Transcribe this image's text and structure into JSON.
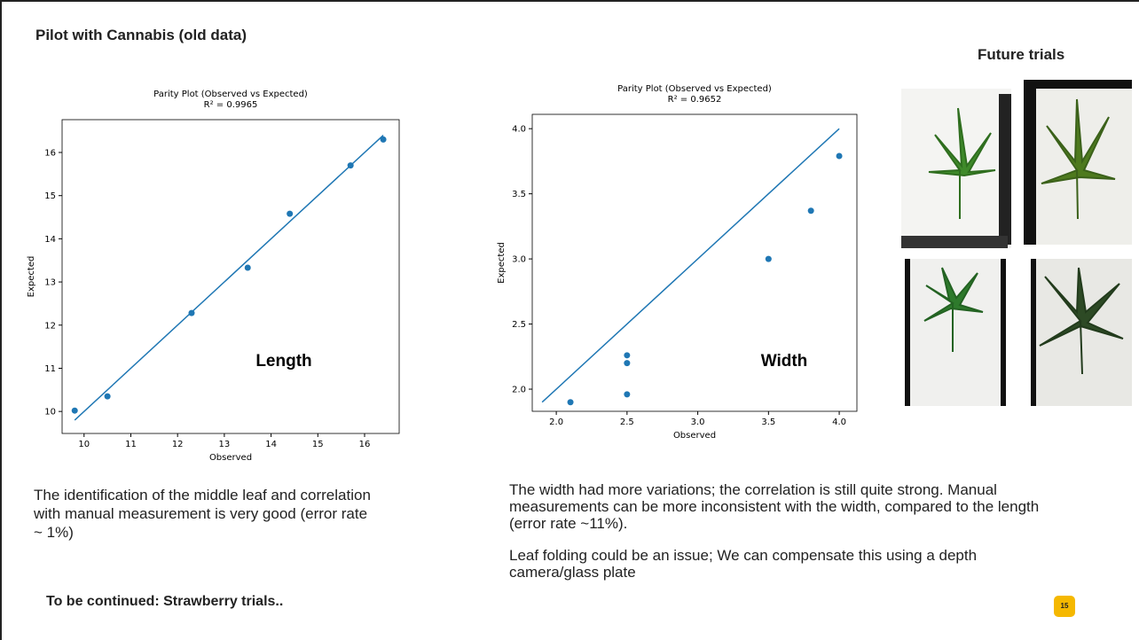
{
  "header": {
    "title": "Pilot with Cannabis (old data)",
    "side_title": "Future trials"
  },
  "chart_data": [
    {
      "type": "scatter",
      "title": "Parity Plot (Observed vs Expected)",
      "subtitle": "R² = 0.9965",
      "x_label": "Observed",
      "y_label": "Expected",
      "annotation": "Length",
      "color": "#1f77b4",
      "x": [
        9.8,
        10.5,
        12.3,
        13.5,
        14.4,
        15.7,
        16.4
      ],
      "values": [
        10.02,
        10.35,
        12.28,
        13.33,
        14.58,
        15.7,
        16.3
      ],
      "fit": {
        "x": [
          9.8,
          16.4
        ],
        "y": [
          9.8,
          16.4
        ]
      },
      "xlim": [
        9.53,
        16.74
      ],
      "ylim": [
        9.49,
        16.76
      ],
      "xticks": [
        10,
        11,
        12,
        13,
        14,
        15,
        16
      ],
      "yticks": [
        10,
        11,
        12,
        13,
        14,
        15,
        16
      ]
    },
    {
      "type": "scatter",
      "title": "Parity Plot (Observed vs Expected)",
      "subtitle": "R² = 0.9652",
      "x_label": "Observed",
      "y_label": "Expected",
      "annotation": "Width",
      "color": "#1f77b4",
      "x": [
        2.1,
        2.5,
        2.5,
        2.5,
        3.5,
        3.8,
        4.0
      ],
      "values": [
        1.9,
        2.26,
        2.2,
        1.96,
        3.0,
        3.37,
        3.79
      ],
      "fit": {
        "x": [
          1.9,
          4.0
        ],
        "y": [
          1.9,
          4.0
        ]
      },
      "xlim": [
        1.83,
        4.125
      ],
      "ylim": [
        1.83,
        4.11
      ],
      "xticks": [
        {
          "value": 2,
          "label": "2.0"
        },
        2.5,
        {
          "value": 3,
          "label": "3.0"
        },
        3.5,
        {
          "value": 4,
          "label": "4.0"
        }
      ],
      "yticks": [
        {
          "value": 2,
          "label": "2.0"
        },
        2.5,
        {
          "value": 3,
          "label": "3.0"
        },
        3.5,
        {
          "value": 4,
          "label": "4.0"
        }
      ]
    }
  ],
  "text": {
    "left_paragraph": "The identification of the middle leaf and correlation with manual measurement is very good (error rate ~ 1%)",
    "left_footer": "To be continued: Strawberry trials..",
    "right_paragraph_1": "The width had more variations; the correlation is still quite strong. Manual measurements can be more inconsistent with the width, compared to the length (error rate ~11%).",
    "right_paragraph_2": "Leaf folding could be an issue; We can compensate this using a depth camera/glass plate",
    "page_number": "15"
  }
}
